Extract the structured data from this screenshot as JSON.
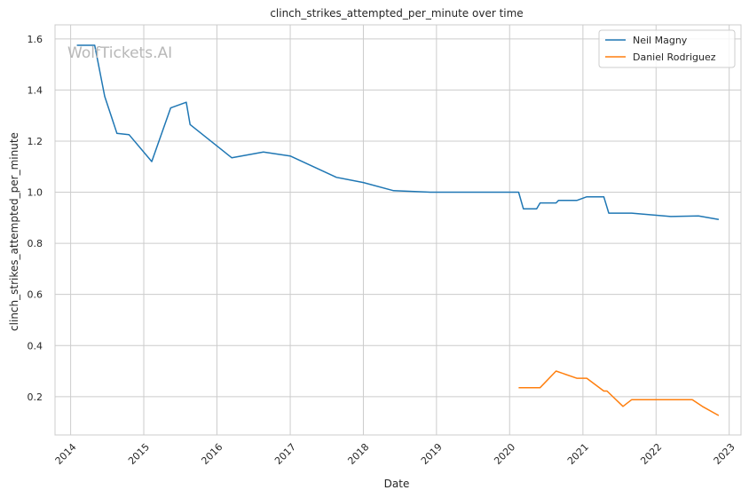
{
  "chart_data": {
    "type": "line",
    "title": "clinch_strikes_attempted_per_minute over time",
    "xlabel": "Date",
    "ylabel": "clinch_strikes_attempted_per_minute",
    "watermark": "WolfTickets.AI",
    "x_ticks": [
      "2014",
      "2015",
      "2016",
      "2017",
      "2018",
      "2019",
      "2020",
      "2021",
      "2022",
      "2023"
    ],
    "y_ticks": [
      "0.2",
      "0.4",
      "0.6",
      "0.8",
      "1.0",
      "1.2",
      "1.4",
      "1.6"
    ],
    "xlim": [
      "2013-10-15",
      "2023-03-01"
    ],
    "ylim": [
      0.05,
      1.655
    ],
    "grid": true,
    "legend_position": "top-right",
    "series": [
      {
        "name": "Neil Magny",
        "color": "#1f77b4",
        "points": [
          [
            "2014-02-01",
            1.575
          ],
          [
            "2014-05-01",
            1.575
          ],
          [
            "2014-06-20",
            1.375
          ],
          [
            "2014-08-20",
            1.23
          ],
          [
            "2014-10-20",
            1.225
          ],
          [
            "2015-02-10",
            1.12
          ],
          [
            "2015-05-15",
            1.33
          ],
          [
            "2015-08-01",
            1.352
          ],
          [
            "2015-08-20",
            1.265
          ],
          [
            "2016-03-15",
            1.135
          ],
          [
            "2016-08-20",
            1.157
          ],
          [
            "2017-01-01",
            1.142
          ],
          [
            "2017-08-20",
            1.058
          ],
          [
            "2018-01-01",
            1.038
          ],
          [
            "2018-06-01",
            1.006
          ],
          [
            "2018-12-01",
            1.0
          ],
          [
            "2020-02-15",
            1.0
          ],
          [
            "2020-03-10",
            0.935
          ],
          [
            "2020-05-15",
            0.935
          ],
          [
            "2020-06-01",
            0.958
          ],
          [
            "2020-08-20",
            0.958
          ],
          [
            "2020-09-01",
            0.968
          ],
          [
            "2020-12-01",
            0.968
          ],
          [
            "2021-01-20",
            0.982
          ],
          [
            "2021-04-15",
            0.982
          ],
          [
            "2021-05-10",
            0.918
          ],
          [
            "2021-09-01",
            0.918
          ],
          [
            "2022-03-15",
            0.905
          ],
          [
            "2022-08-01",
            0.907
          ],
          [
            "2022-11-10",
            0.893
          ]
        ]
      },
      {
        "name": "Daniel Rodriguez",
        "color": "#ff7f0e",
        "points": [
          [
            "2020-02-15",
            0.235
          ],
          [
            "2020-06-01",
            0.235
          ],
          [
            "2020-08-20",
            0.3
          ],
          [
            "2020-12-01",
            0.272
          ],
          [
            "2021-01-20",
            0.272
          ],
          [
            "2021-04-15",
            0.222
          ],
          [
            "2021-05-01",
            0.222
          ],
          [
            "2021-07-20",
            0.162
          ],
          [
            "2021-09-01",
            0.188
          ],
          [
            "2022-07-01",
            0.188
          ],
          [
            "2022-08-20",
            0.162
          ],
          [
            "2022-11-10",
            0.126
          ]
        ]
      }
    ]
  }
}
